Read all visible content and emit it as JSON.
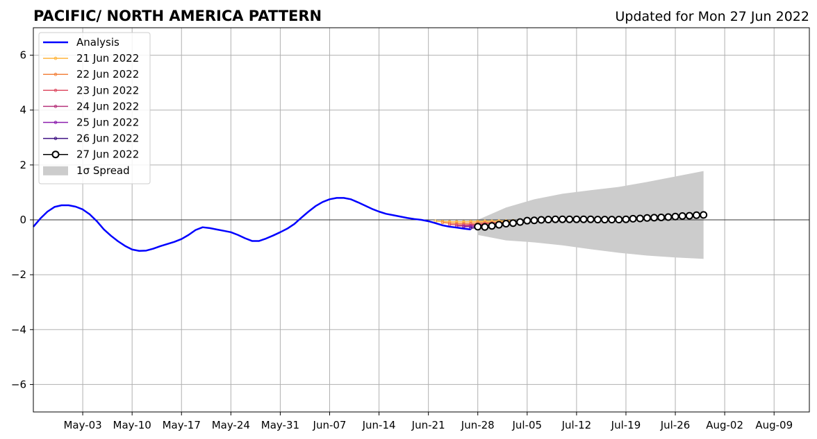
{
  "chart_data": {
    "type": "line",
    "title": "PACIFIC/ NORTH AMERICA PATTERN",
    "subtitle": "Updated for Mon 27 Jun 2022",
    "ylim": [
      -7,
      7
    ],
    "yticks": [
      6,
      4,
      2,
      0,
      -2,
      -4,
      -6
    ],
    "ytick_labels": [
      "6",
      "4",
      "2",
      "0",
      "−2",
      "−4",
      "−6"
    ],
    "xlim": [
      "2022-04-26",
      "2022-08-14"
    ],
    "xticks": [
      "2022-05-03",
      "2022-05-10",
      "2022-05-17",
      "2022-05-24",
      "2022-05-31",
      "2022-06-07",
      "2022-06-14",
      "2022-06-21",
      "2022-06-28",
      "2022-07-05",
      "2022-07-12",
      "2022-07-19",
      "2022-07-26",
      "2022-08-02",
      "2022-08-09"
    ],
    "xtick_labels": [
      "May-03",
      "May-10",
      "May-17",
      "May-24",
      "May-31",
      "Jun-07",
      "Jun-14",
      "Jun-21",
      "Jun-28",
      "Jul-05",
      "Jul-12",
      "Jul-19",
      "Jul-26",
      "Aug-02",
      "Aug-09"
    ],
    "grid": true,
    "zero_line": 0,
    "legend_position": "top-left",
    "legend": [
      "Analysis",
      "21 Jun 2022",
      "22 Jun 2022",
      "23 Jun 2022",
      "24 Jun 2022",
      "25 Jun 2022",
      "26 Jun 2022",
      "27 Jun 2022",
      "1σ Spread"
    ],
    "analysis": {
      "name": "Analysis",
      "color": "#0000ff",
      "x": [
        "2022-04-26",
        "2022-04-27",
        "2022-04-28",
        "2022-04-29",
        "2022-04-30",
        "2022-05-01",
        "2022-05-02",
        "2022-05-03",
        "2022-05-04",
        "2022-05-05",
        "2022-05-06",
        "2022-05-07",
        "2022-05-08",
        "2022-05-09",
        "2022-05-10",
        "2022-05-11",
        "2022-05-12",
        "2022-05-13",
        "2022-05-14",
        "2022-05-15",
        "2022-05-16",
        "2022-05-17",
        "2022-05-18",
        "2022-05-19",
        "2022-05-20",
        "2022-05-21",
        "2022-05-22",
        "2022-05-23",
        "2022-05-24",
        "2022-05-25",
        "2022-05-26",
        "2022-05-27",
        "2022-05-28",
        "2022-05-29",
        "2022-05-30",
        "2022-05-31",
        "2022-06-01",
        "2022-06-02",
        "2022-06-03",
        "2022-06-04",
        "2022-06-05",
        "2022-06-06",
        "2022-06-07",
        "2022-06-08",
        "2022-06-09",
        "2022-06-10",
        "2022-06-11",
        "2022-06-12",
        "2022-06-13",
        "2022-06-14",
        "2022-06-15",
        "2022-06-16",
        "2022-06-17",
        "2022-06-18",
        "2022-06-19",
        "2022-06-20",
        "2022-06-21",
        "2022-06-22",
        "2022-06-23",
        "2022-06-24",
        "2022-06-25",
        "2022-06-26",
        "2022-06-27"
      ],
      "y": [
        -0.25,
        0.05,
        0.3,
        0.47,
        0.53,
        0.53,
        0.48,
        0.38,
        0.2,
        -0.05,
        -0.35,
        -0.58,
        -0.78,
        -0.95,
        -1.08,
        -1.13,
        -1.12,
        -1.05,
        -0.96,
        -0.88,
        -0.8,
        -0.7,
        -0.55,
        -0.37,
        -0.27,
        -0.3,
        -0.35,
        -0.4,
        -0.45,
        -0.55,
        -0.67,
        -0.77,
        -0.77,
        -0.68,
        -0.57,
        -0.45,
        -0.32,
        -0.15,
        0.08,
        0.3,
        0.5,
        0.65,
        0.75,
        0.8,
        0.8,
        0.75,
        0.64,
        0.52,
        0.4,
        0.3,
        0.22,
        0.17,
        0.12,
        0.07,
        0.03,
        0.0,
        -0.05,
        -0.12,
        -0.2,
        -0.25,
        -0.28,
        -0.32,
        -0.35
      ]
    },
    "forecasts": [
      {
        "name": "21 Jun 2022",
        "color": "#ffb53b",
        "x": [
          "2022-06-22",
          "2022-06-23",
          "2022-06-24",
          "2022-06-25",
          "2022-06-26",
          "2022-06-27",
          "2022-06-28",
          "2022-06-29",
          "2022-06-30",
          "2022-07-01",
          "2022-07-02",
          "2022-07-03"
        ],
        "y": [
          -0.05,
          -0.06,
          -0.07,
          -0.07,
          -0.07,
          -0.06,
          -0.06,
          -0.05,
          -0.05,
          -0.04,
          -0.04,
          -0.03
        ]
      },
      {
        "name": "22 Jun 2022",
        "color": "#f3833f",
        "x": [
          "2022-06-23",
          "2022-06-24",
          "2022-06-25",
          "2022-06-26",
          "2022-06-27",
          "2022-06-28",
          "2022-06-29",
          "2022-06-30",
          "2022-07-01",
          "2022-07-02",
          "2022-07-03",
          "2022-07-04",
          "2022-07-05",
          "2022-07-06",
          "2022-07-07",
          "2022-07-08",
          "2022-07-09",
          "2022-07-10",
          "2022-07-11"
        ],
        "y": [
          -0.1,
          -0.12,
          -0.13,
          -0.13,
          -0.12,
          -0.11,
          -0.1,
          -0.1,
          -0.09,
          -0.08,
          -0.07,
          -0.06,
          -0.05,
          -0.05,
          -0.04,
          -0.04,
          -0.03,
          -0.03,
          -0.02
        ]
      },
      {
        "name": "23 Jun 2022",
        "color": "#de4f65",
        "x": [
          "2022-06-24",
          "2022-06-25",
          "2022-06-26",
          "2022-06-27",
          "2022-06-28",
          "2022-06-29",
          "2022-06-30",
          "2022-07-01"
        ],
        "y": [
          -0.17,
          -0.18,
          -0.18,
          -0.17,
          -0.16,
          -0.14,
          -0.12,
          -0.1
        ]
      },
      {
        "name": "24 Jun 2022",
        "color": "#b6337b",
        "x": [
          "2022-06-25",
          "2022-06-26",
          "2022-06-27",
          "2022-06-28",
          "2022-06-29"
        ],
        "y": [
          -0.22,
          -0.22,
          -0.21,
          -0.19,
          -0.17
        ]
      },
      {
        "name": "25 Jun 2022",
        "color": "#8a1bad",
        "x": [
          "2022-06-26",
          "2022-06-27",
          "2022-06-28"
        ],
        "y": [
          -0.25,
          -0.25,
          -0.24
        ]
      },
      {
        "name": "26 Jun 2022",
        "color": "#3d0f82",
        "x": [
          "2022-06-27",
          "2022-06-28"
        ],
        "y": [
          -0.3,
          -0.29
        ]
      },
      {
        "name": "27 Jun 2022",
        "color": "#000000",
        "x": [
          "2022-06-28",
          "2022-06-29",
          "2022-06-30",
          "2022-07-01",
          "2022-07-02",
          "2022-07-03",
          "2022-07-04",
          "2022-07-05",
          "2022-07-06",
          "2022-07-07",
          "2022-07-08",
          "2022-07-09",
          "2022-07-10",
          "2022-07-11",
          "2022-07-12",
          "2022-07-13",
          "2022-07-14",
          "2022-07-15",
          "2022-07-16",
          "2022-07-17",
          "2022-07-18",
          "2022-07-19",
          "2022-07-20",
          "2022-07-21",
          "2022-07-22",
          "2022-07-23",
          "2022-07-24",
          "2022-07-25",
          "2022-07-26",
          "2022-07-27",
          "2022-07-28",
          "2022-07-29",
          "2022-07-30"
        ],
        "y": [
          -0.25,
          -0.26,
          -0.22,
          -0.18,
          -0.14,
          -0.12,
          -0.08,
          -0.03,
          -0.02,
          0.0,
          0.01,
          0.02,
          0.02,
          0.02,
          0.02,
          0.02,
          0.02,
          0.01,
          0.01,
          0.01,
          0.01,
          0.02,
          0.04,
          0.05,
          0.07,
          0.08,
          0.09,
          0.1,
          0.12,
          0.14,
          0.15,
          0.17,
          0.18
        ]
      }
    ],
    "spread": {
      "name": "1σ Spread",
      "color": "#cccccc",
      "x": [
        "2022-06-28",
        "2022-07-02",
        "2022-07-06",
        "2022-07-10",
        "2022-07-14",
        "2022-07-18",
        "2022-07-22",
        "2022-07-26",
        "2022-07-30"
      ],
      "upper": [
        0.0,
        0.45,
        0.75,
        0.95,
        1.08,
        1.2,
        1.38,
        1.58,
        1.78
      ],
      "lower": [
        -0.55,
        -0.75,
        -0.82,
        -0.93,
        -1.07,
        -1.2,
        -1.3,
        -1.37,
        -1.42
      ]
    }
  }
}
